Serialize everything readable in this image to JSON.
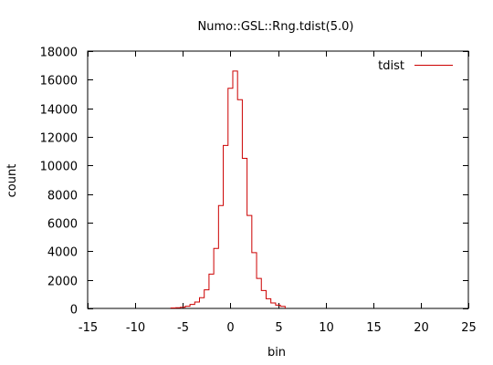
{
  "chart_data": {
    "type": "line",
    "title": "Numo::GSL::Rng.tdist(5.0)",
    "xlabel": "bin",
    "ylabel": "count",
    "xlim": [
      -15,
      25
    ],
    "ylim": [
      0,
      18000
    ],
    "x_ticks": [
      -15,
      -10,
      -5,
      0,
      5,
      10,
      15,
      20,
      25
    ],
    "y_ticks": [
      0,
      2000,
      4000,
      6000,
      8000,
      10000,
      12000,
      14000,
      16000,
      18000
    ],
    "x_tick_labels": [
      "-15",
      "-10",
      "-5",
      "0",
      "5",
      "10",
      "15",
      "20",
      "25"
    ],
    "y_tick_labels": [
      "0",
      "2000",
      "4000",
      "6000",
      "8000",
      "10000",
      "12000",
      "14000",
      "16000",
      "18000"
    ],
    "grid": false,
    "legend_position": "top-right",
    "series": [
      {
        "name": "tdist",
        "color": "#cc0000",
        "style": "steps",
        "bin_width": 0.5,
        "x": [
          -6.0,
          -5.5,
          -5.0,
          -4.5,
          -4.0,
          -3.5,
          -3.0,
          -2.5,
          -2.0,
          -1.5,
          -1.0,
          -0.5,
          0.0,
          0.5,
          1.0,
          1.5,
          2.0,
          2.5,
          3.0,
          3.5,
          4.0,
          4.5,
          5.0,
          5.5
        ],
        "values": [
          30,
          50,
          80,
          150,
          280,
          450,
          750,
          1300,
          2400,
          4200,
          7200,
          11400,
          15400,
          16600,
          14600,
          10500,
          6500,
          3900,
          2100,
          1250,
          680,
          380,
          230,
          140
        ]
      }
    ]
  }
}
